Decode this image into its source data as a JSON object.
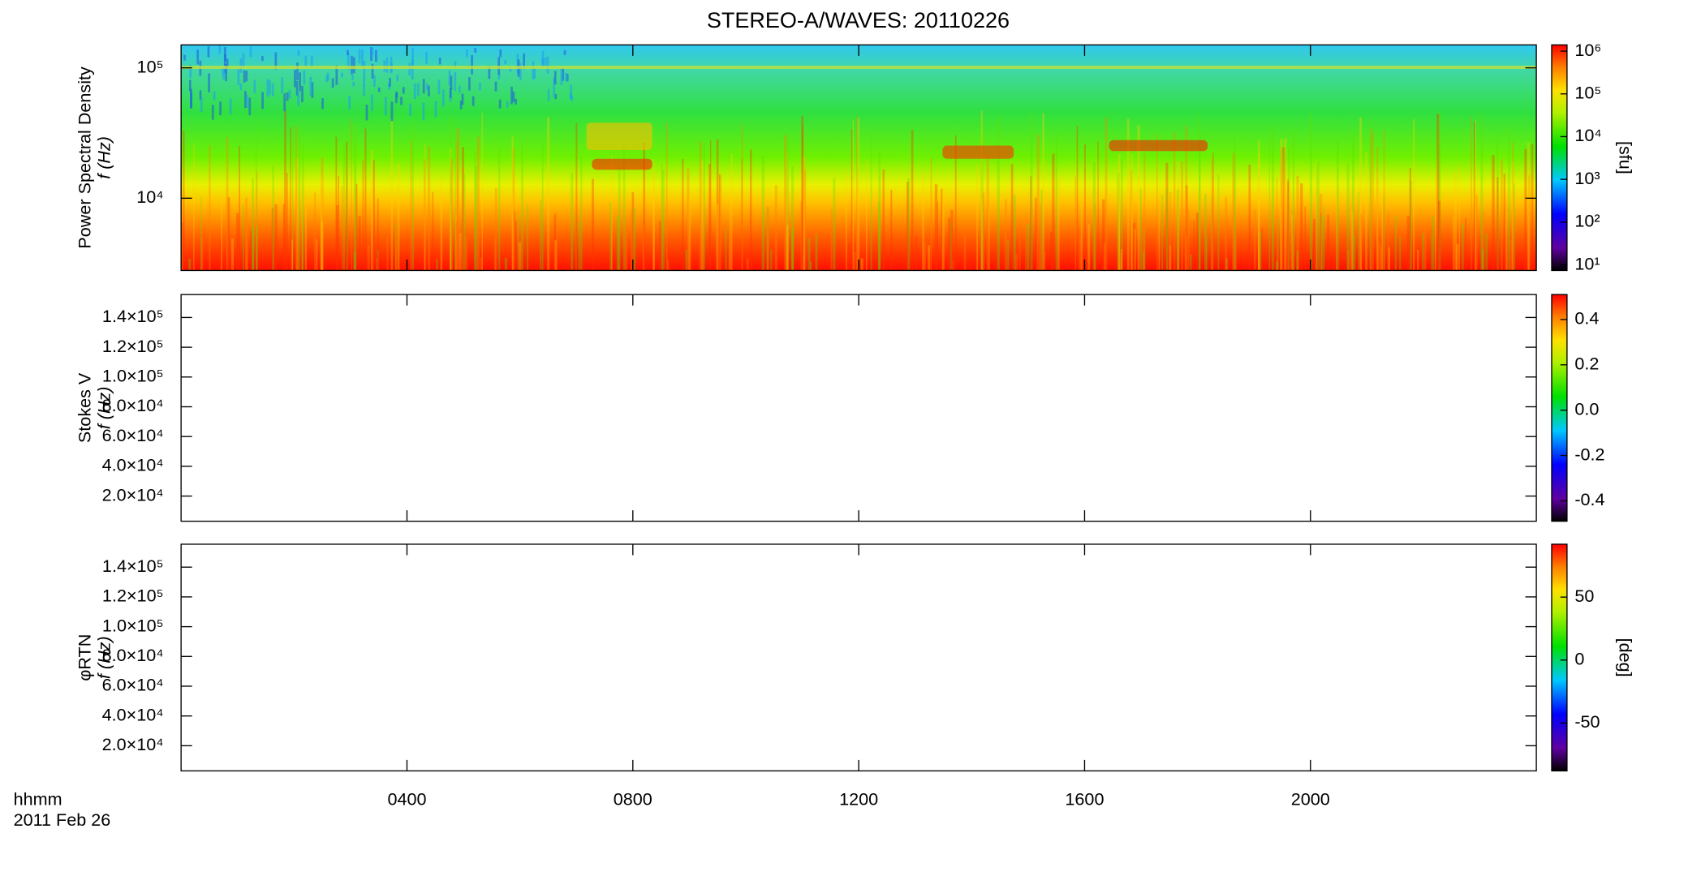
{
  "title": "STEREO-A/WAVES: 20110226",
  "xlabel": [
    "hhmm",
    "2011 Feb 26"
  ],
  "xlim": [
    0,
    24
  ],
  "xticks": [
    {
      "value": 4,
      "label": "0400"
    },
    {
      "value": 8,
      "label": "0800"
    },
    {
      "value": 12,
      "label": "1200"
    },
    {
      "value": 16,
      "label": "1600"
    },
    {
      "value": 20,
      "label": "2000"
    }
  ],
  "chart_data": [
    {
      "type": "heatmap",
      "ylabel": [
        "Power Spectral Density",
        "f (Hz)"
      ],
      "log_y": true,
      "ylim": [
        2790,
        150000
      ],
      "yticks": [
        {
          "value": 10000,
          "label": "10⁴"
        },
        {
          "value": 100000,
          "label": "10⁵"
        }
      ],
      "colorbar": {
        "log": true,
        "lim": [
          7.4,
          1400000
        ],
        "label": "[sfu]",
        "ticks": [
          {
            "value": 10,
            "label": "10¹"
          },
          {
            "value": 100,
            "label": "10²"
          },
          {
            "value": 1000,
            "label": "10³"
          },
          {
            "value": 10000,
            "label": "10⁴"
          },
          {
            "value": 100000,
            "label": "10⁵"
          },
          {
            "value": 1000000,
            "label": "10⁶"
          }
        ]
      }
    },
    {
      "type": "heatmap",
      "ylabel": [
        "Stokes V",
        "f (Hz)"
      ],
      "log_y": false,
      "ylim": [
        3100,
        155400
      ],
      "yticks": [
        {
          "value": 20000,
          "label": "2.0×10⁴"
        },
        {
          "value": 40000,
          "label": "4.0×10⁴"
        },
        {
          "value": 60000,
          "label": "6.0×10⁴"
        },
        {
          "value": 80000,
          "label": "8.0×10⁴"
        },
        {
          "value": 100000,
          "label": "1.0×10⁵"
        },
        {
          "value": 120000,
          "label": "1.2×10⁵"
        },
        {
          "value": 140000,
          "label": "1.4×10⁵"
        }
      ],
      "colorbar": {
        "log": false,
        "lim": [
          -0.49,
          0.51
        ],
        "ticks": [
          {
            "value": -0.4,
            "label": "-0.4"
          },
          {
            "value": -0.2,
            "label": "-0.2"
          },
          {
            "value": 0,
            "label": "0.0"
          },
          {
            "value": 0.2,
            "label": "0.2"
          },
          {
            "value": 0.4,
            "label": "0.4"
          }
        ]
      }
    },
    {
      "type": "heatmap",
      "ylabel": [
        "φRTN",
        "f (Hz)"
      ],
      "log_y": false,
      "ylim": [
        3100,
        155400
      ],
      "yticks": [
        {
          "value": 20000,
          "label": "2.0×10⁴"
        },
        {
          "value": 40000,
          "label": "4.0×10⁴"
        },
        {
          "value": 60000,
          "label": "6.0×10⁴"
        },
        {
          "value": 80000,
          "label": "8.0×10⁴"
        },
        {
          "value": 100000,
          "label": "1.0×10⁵"
        },
        {
          "value": 120000,
          "label": "1.2×10⁵"
        },
        {
          "value": 140000,
          "label": "1.4×10⁵"
        }
      ],
      "colorbar": {
        "log": false,
        "lim": [
          -88,
          92
        ],
        "label": "[deg]",
        "ticks": [
          -50,
          0,
          50
        ]
      }
    }
  ]
}
